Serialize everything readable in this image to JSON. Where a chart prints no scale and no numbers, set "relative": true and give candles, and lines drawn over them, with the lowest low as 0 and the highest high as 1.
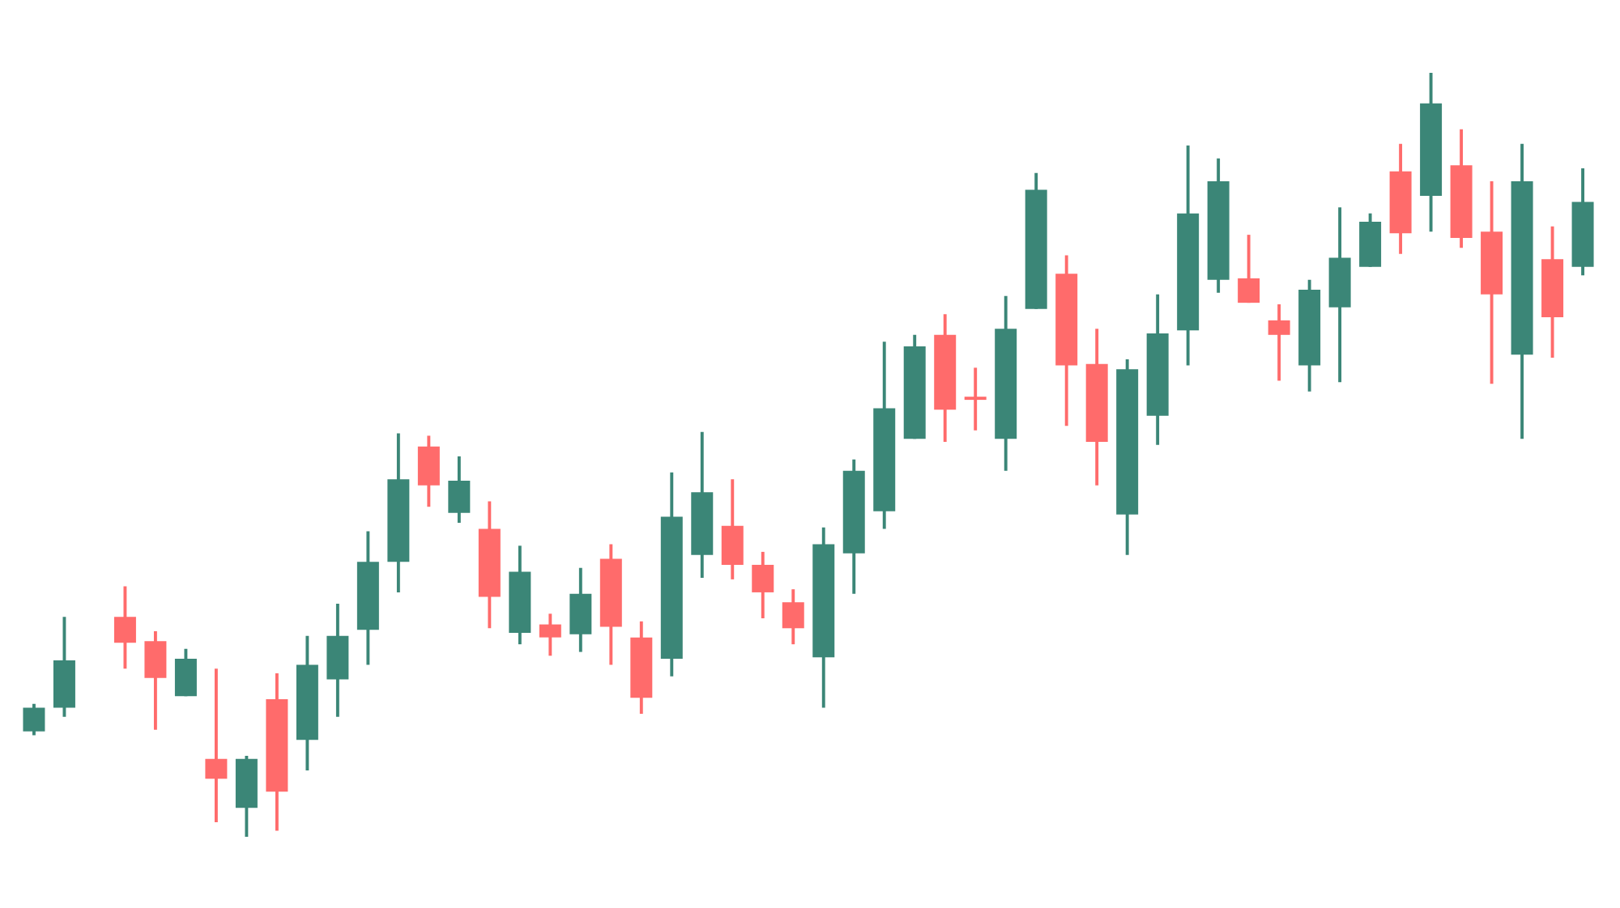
{
  "chart_data": {
    "type": "candlestick",
    "relative": true,
    "categories": [
      null,
      null,
      null,
      null,
      null,
      null,
      null,
      null,
      null,
      null,
      null,
      null,
      null,
      null,
      null,
      null,
      null,
      null,
      null,
      null,
      null,
      null,
      null,
      null,
      null,
      null,
      null,
      null,
      null,
      null,
      null,
      null,
      null,
      null,
      null,
      null,
      null,
      null,
      null,
      null,
      null,
      null,
      null,
      null,
      null,
      null,
      null,
      null,
      null,
      null,
      null,
      null
    ],
    "ohlc": [
      [
        0.138,
        0.174,
        0.133,
        0.169
      ],
      [
        0.169,
        0.288,
        0.157,
        0.231
      ],
      null,
      [
        0.288,
        0.328,
        0.22,
        0.254
      ],
      [
        0.256,
        0.269,
        0.14,
        0.208
      ],
      [
        0.184,
        0.246,
        0.184,
        0.233
      ],
      [
        0.102,
        0.22,
        0.019,
        0.076
      ],
      [
        0.038,
        0.106,
        0,
        0.102
      ],
      [
        0.18,
        0.214,
        0.008,
        0.059
      ],
      [
        0.127,
        0.263,
        0.087,
        0.225
      ],
      [
        0.206,
        0.305,
        0.157,
        0.263
      ],
      [
        0.271,
        0.4,
        0.225,
        0.36
      ],
      [
        0.36,
        0.528,
        0.32,
        0.468
      ],
      [
        0.511,
        0.525,
        0.432,
        0.46
      ],
      [
        0.424,
        0.498,
        0.411,
        0.466
      ],
      [
        0.403,
        0.439,
        0.273,
        0.314
      ],
      [
        0.267,
        0.381,
        0.252,
        0.347
      ],
      [
        0.278,
        0.292,
        0.237,
        0.261
      ],
      [
        0.265,
        0.352,
        0.242,
        0.318
      ],
      [
        0.364,
        0.383,
        0.225,
        0.275
      ],
      [
        0.261,
        0.282,
        0.161,
        0.182
      ],
      [
        0.233,
        0.477,
        0.21,
        0.419
      ],
      [
        0.369,
        0.53,
        0.339,
        0.451
      ],
      [
        0.407,
        0.468,
        0.337,
        0.356
      ],
      [
        0.356,
        0.373,
        0.286,
        0.32
      ],
      [
        0.307,
        0.324,
        0.252,
        0.273
      ],
      [
        0.235,
        0.405,
        0.169,
        0.383
      ],
      [
        0.371,
        0.494,
        0.318,
        0.479
      ],
      [
        0.426,
        0.648,
        0.403,
        0.561
      ],
      [
        0.521,
        0.657,
        0.521,
        0.642
      ],
      [
        0.657,
        0.684,
        0.517,
        0.559
      ],
      [
        0.574,
        0.614,
        0.532,
        0.574
      ],
      [
        0.521,
        0.708,
        0.479,
        0.665
      ],
      [
        0.691,
        0.869,
        0.691,
        0.847
      ],
      [
        0.737,
        0.761,
        0.538,
        0.617
      ],
      [
        0.619,
        0.665,
        0.46,
        0.517
      ],
      [
        0.422,
        0.625,
        0.369,
        0.612
      ],
      [
        0.551,
        0.71,
        0.513,
        0.659
      ],
      [
        0.663,
        0.905,
        0.617,
        0.816
      ],
      [
        0.729,
        0.888,
        0.712,
        0.858
      ],
      [
        0.731,
        0.788,
        0.699,
        0.699
      ],
      [
        0.676,
        0.697,
        0.597,
        0.657
      ],
      [
        0.617,
        0.729,
        0.583,
        0.716
      ],
      [
        0.693,
        0.824,
        0.595,
        0.758
      ],
      [
        0.746,
        0.816,
        0.746,
        0.805
      ],
      [
        0.871,
        0.907,
        0.763,
        0.79
      ],
      [
        0.839,
        1,
        0.792,
        0.96
      ],
      [
        0.879,
        0.926,
        0.771,
        0.784
      ],
      [
        0.792,
        0.858,
        0.593,
        0.71
      ],
      [
        0.631,
        0.907,
        0.521,
        0.858
      ],
      [
        0.756,
        0.799,
        0.627,
        0.68
      ],
      [
        0.746,
        0.875,
        0.735,
        0.831
      ]
    ],
    "colors": [
      "#3b8677",
      "#3b8677",
      null,
      "#ff6b6b",
      "#ff6b6b",
      "#3b8677",
      "#ff6b6b",
      "#3b8677",
      "#ff6b6b",
      "#3b8677",
      "#3b8677",
      "#3b8677",
      "#3b8677",
      "#ff6b6b",
      "#3b8677",
      "#ff6b6b",
      "#3b8677",
      "#ff6b6b",
      "#3b8677",
      "#ff6b6b",
      "#ff6b6b",
      "#3b8677",
      "#3b8677",
      "#ff6b6b",
      "#ff6b6b",
      "#ff6b6b",
      "#3b8677",
      "#3b8677",
      "#3b8677",
      "#3b8677",
      "#ff6b6b",
      "#ff6b6b",
      "#3b8677",
      "#3b8677",
      "#ff6b6b",
      "#ff6b6b",
      "#3b8677",
      "#3b8677",
      "#3b8677",
      "#3b8677",
      "#ff6b6b",
      "#ff6b6b",
      "#3b8677",
      "#3b8677",
      "#3b8677",
      "#ff6b6b",
      "#3b8677",
      "#ff6b6b",
      "#ff6b6b",
      "#3b8677",
      "#ff6b6b",
      "#3b8677"
    ]
  }
}
